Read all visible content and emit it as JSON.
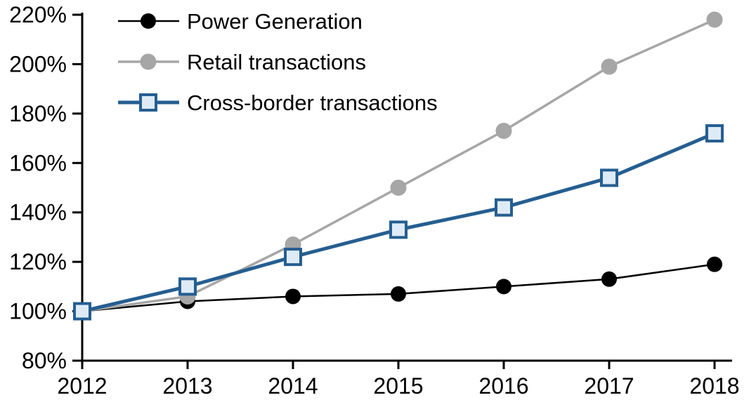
{
  "chart_data": {
    "type": "line",
    "title": "",
    "xlabel": "",
    "ylabel": "",
    "x": [
      2012,
      2013,
      2014,
      2015,
      2016,
      2017,
      2018
    ],
    "series": [
      {
        "name": "Power Generation",
        "color": "#000000",
        "line_width": 2.5,
        "marker": "circle",
        "marker_fill": "#000000",
        "marker_size": 11,
        "values": [
          100,
          104,
          106,
          107,
          110,
          113,
          119
        ]
      },
      {
        "name": "Retail transactions",
        "color": "#A6A6A6",
        "line_width": 3.5,
        "marker": "circle",
        "marker_fill": "#A6A6A6",
        "marker_size": 11.5,
        "values": [
          100,
          106,
          127,
          150,
          173,
          199,
          218
        ]
      },
      {
        "name": "Cross-border transactions",
        "color": "#255E91",
        "line_width": 5,
        "marker": "square",
        "marker_fill": "#DEEBF7",
        "marker_size": 11,
        "values": [
          100,
          110,
          122,
          133,
          142,
          154,
          172
        ]
      }
    ],
    "xlim": [
      2012,
      2018
    ],
    "ylim": [
      80,
      220
    ],
    "ytick_step": 20,
    "ytick_suffix": "%",
    "xtick_labels": [
      "2012",
      "2013",
      "2014",
      "2015",
      "2016",
      "2017",
      "2018"
    ],
    "ytick_labels": [
      "80%",
      "100%",
      "120%",
      "140%",
      "160%",
      "180%",
      "200%",
      "220%"
    ],
    "legend_position": "top-left",
    "grid": false,
    "axis_color": "#000000",
    "background": "#FFFFFF"
  }
}
